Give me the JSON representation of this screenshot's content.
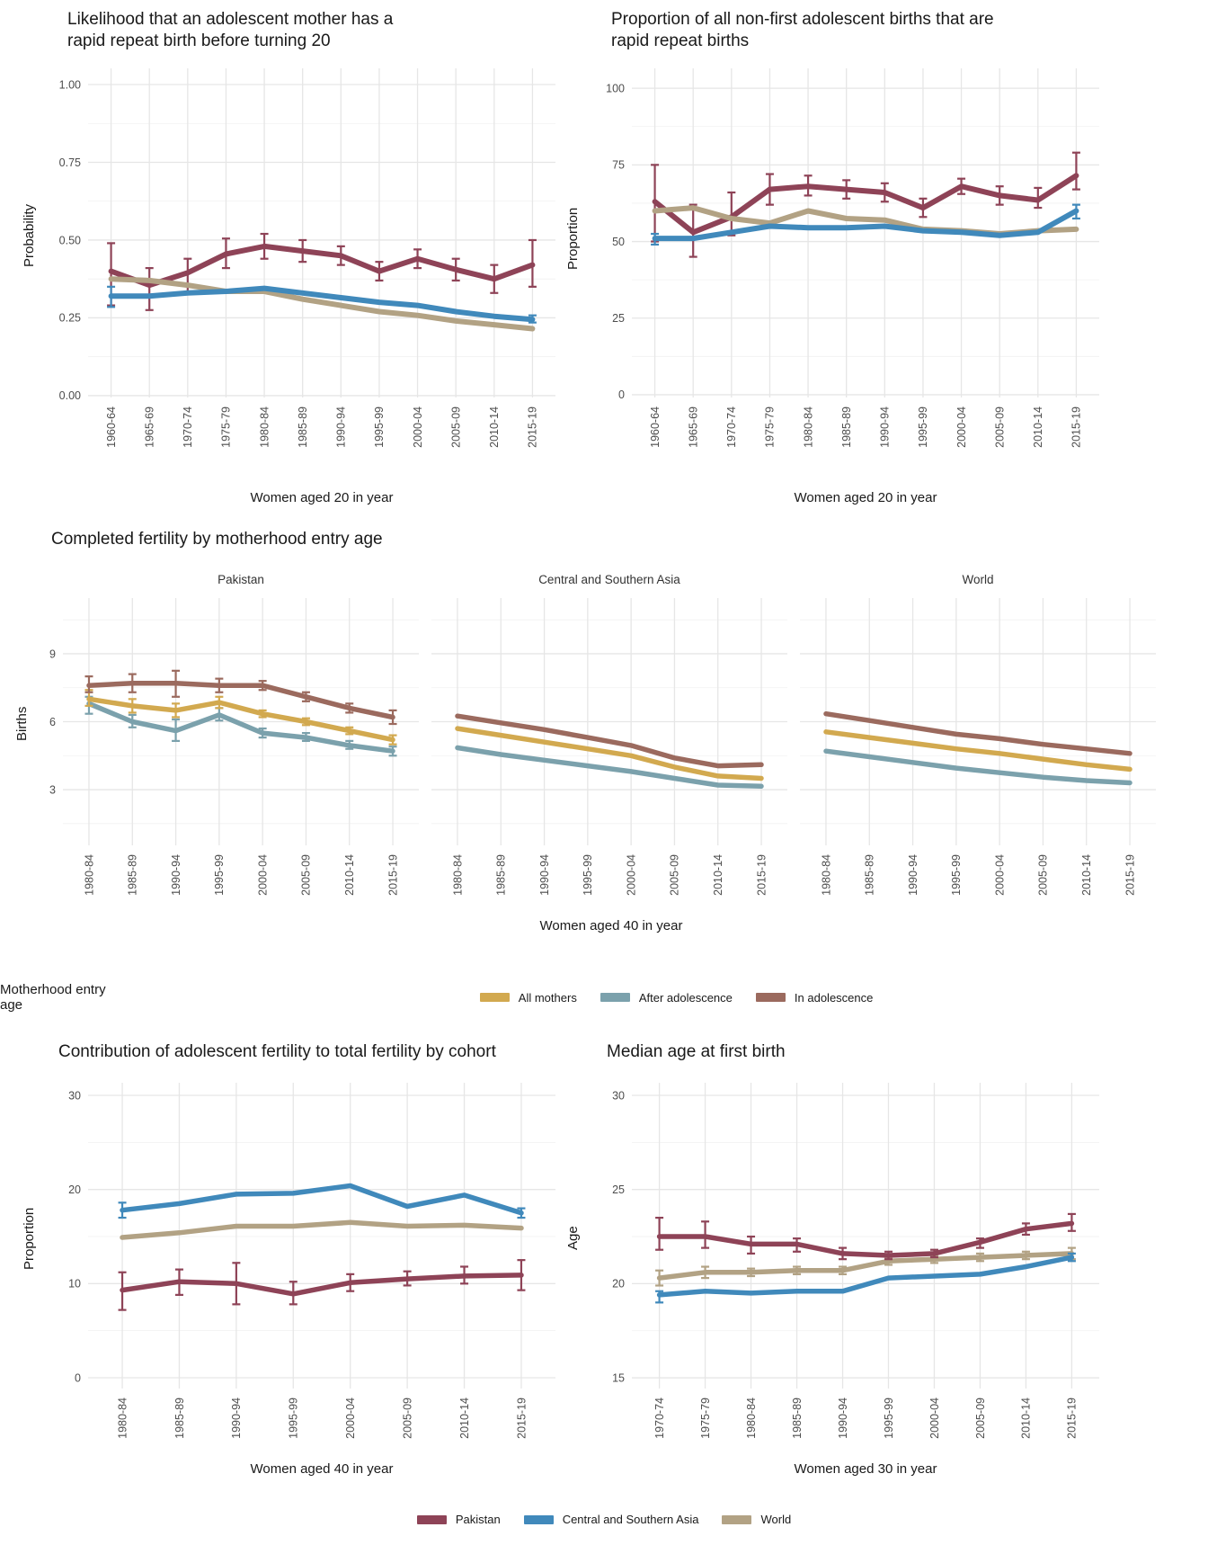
{
  "figure": {
    "background": "#ffffff",
    "grid_major": "#e6e6e6",
    "grid_minor": "#f1f1f1",
    "tick_text_color": "#4d4d4d",
    "title_text_color": "#191919"
  },
  "bottom_legend": {
    "items": [
      {
        "label": "Pakistan",
        "color": "#8e4357"
      },
      {
        "label": "Central and Southern Asia",
        "color": "#4089bb"
      },
      {
        "label": "World",
        "color": "#b2a284"
      }
    ]
  },
  "chart_data": [
    {
      "id": "rrb-likelihood",
      "type": "line",
      "title": "Likelihood that an adolescent mother has a\nrapid repeat birth before turning 20",
      "xlabel": "Women aged 20 in year",
      "ylabel": "Probability",
      "ylim": [
        -0.006,
        1.052
      ],
      "yticks": [
        0,
        0.25,
        0.5,
        0.75,
        1
      ],
      "ytick_labels": [
        "0.00",
        "0.25",
        "0.50",
        "0.75",
        "1.00"
      ],
      "grid": true,
      "legend_position": "none",
      "categories": [
        "1960-64",
        "1965-69",
        "1970-74",
        "1975-79",
        "1980-84",
        "1985-89",
        "1990-94",
        "1995-99",
        "2000-04",
        "2005-09",
        "2010-14",
        "2015-19"
      ],
      "series": [
        {
          "name": "Pakistan",
          "color": "#8e4357",
          "values": [
            0.4,
            0.355,
            0.395,
            0.455,
            0.48,
            0.465,
            0.45,
            0.4,
            0.44,
            0.405,
            0.375,
            0.42
          ],
          "err_lo": [
            0.29,
            0.275,
            0.33,
            0.41,
            0.44,
            0.43,
            0.42,
            0.37,
            0.41,
            0.37,
            0.33,
            0.35
          ],
          "err_hi": [
            0.49,
            0.41,
            0.44,
            0.505,
            0.52,
            0.5,
            0.48,
            0.43,
            0.47,
            0.44,
            0.42,
            0.5
          ]
        },
        {
          "name": "World",
          "color": "#b2a284",
          "values": [
            0.375,
            0.37,
            0.355,
            0.335,
            0.335,
            0.31,
            0.29,
            0.27,
            0.258,
            0.24,
            0.228,
            0.215
          ]
        },
        {
          "name": "Central and Southern Asia",
          "color": "#4089bb",
          "values": [
            0.32,
            0.32,
            0.33,
            0.335,
            0.345,
            0.33,
            0.315,
            0.3,
            0.29,
            0.27,
            0.255,
            0.245
          ],
          "err_lo": [
            0.285,
            null,
            null,
            null,
            null,
            null,
            null,
            null,
            null,
            null,
            null,
            0.235
          ],
          "err_hi": [
            0.35,
            null,
            null,
            null,
            null,
            null,
            null,
            null,
            null,
            null,
            null,
            0.258
          ]
        }
      ]
    },
    {
      "id": "rrb-proportion",
      "type": "line",
      "title": "Proportion of all non-first adolescent births that are\nrapid repeat births",
      "xlabel": "Women aged 20 in year",
      "ylabel": "Proportion",
      "ylim": [
        -0.9,
        106.5
      ],
      "yticks": [
        0,
        25,
        50,
        75,
        100
      ],
      "ytick_labels": [
        "0",
        "25",
        "50",
        "75",
        "100"
      ],
      "grid": true,
      "legend_position": "none",
      "categories": [
        "1960-64",
        "1965-69",
        "1970-74",
        "1975-79",
        "1980-84",
        "1985-89",
        "1990-94",
        "1995-99",
        "2000-04",
        "2005-09",
        "2010-14",
        "2015-19"
      ],
      "series": [
        {
          "name": "Pakistan",
          "color": "#8e4357",
          "values": [
            63,
            53,
            58,
            67,
            68,
            67,
            66,
            61,
            68,
            65,
            63.5,
            71.5
          ],
          "err_lo": [
            50,
            45,
            52,
            62,
            65,
            64,
            63,
            58,
            65.5,
            62,
            61,
            67
          ],
          "err_hi": [
            75,
            62,
            66,
            72,
            71.5,
            70,
            69,
            64,
            70.5,
            68,
            67.5,
            79
          ]
        },
        {
          "name": "World",
          "color": "#b2a284",
          "values": [
            60,
            61,
            57.5,
            56,
            60,
            57.5,
            57,
            54,
            53.5,
            52.5,
            53.5,
            54
          ]
        },
        {
          "name": "Central and Southern Asia",
          "color": "#4089bb",
          "values": [
            51,
            51,
            53,
            55,
            54.5,
            54.5,
            55,
            53.5,
            53,
            52,
            53,
            60
          ],
          "err_lo": [
            49,
            null,
            null,
            null,
            null,
            null,
            null,
            null,
            null,
            null,
            null,
            57.5
          ],
          "err_hi": [
            52.5,
            null,
            null,
            null,
            null,
            null,
            null,
            null,
            null,
            null,
            null,
            62
          ]
        }
      ]
    },
    {
      "id": "completed-fertility",
      "type": "line-faceted",
      "title": "Completed fertility by motherhood entry age",
      "xlabel": "Women aged 40 in year",
      "ylabel": "Births",
      "ylim": [
        0.54,
        11.46
      ],
      "yticks": [
        3,
        6,
        9
      ],
      "ytick_labels": [
        "3",
        "6",
        "9"
      ],
      "grid": true,
      "legend_title": "Motherhood entry age",
      "legend_position": "bottom",
      "legend_items": [
        {
          "label": "All mothers",
          "color": "#d2a94f"
        },
        {
          "label": "After adolescence",
          "color": "#7ba1ac"
        },
        {
          "label": "In adolescence",
          "color": "#9b6a5e"
        }
      ],
      "categories": [
        "1980-84",
        "1985-89",
        "1990-94",
        "1995-99",
        "2000-04",
        "2005-09",
        "2010-14",
        "2015-19"
      ],
      "facets": [
        {
          "label": "Pakistan",
          "series": [
            {
              "name": "After adolescence",
              "color": "#7ba1ac",
              "values": [
                6.8,
                6.0,
                5.6,
                6.3,
                5.5,
                5.3,
                4.95,
                4.7
              ],
              "err_lo": [
                6.35,
                5.75,
                5.15,
                6.05,
                5.3,
                5.15,
                4.8,
                4.5
              ],
              "err_hi": [
                7.1,
                6.3,
                6.1,
                6.6,
                5.7,
                5.5,
                5.15,
                4.9
              ]
            },
            {
              "name": "All mothers",
              "color": "#d2a94f",
              "values": [
                7.0,
                6.7,
                6.5,
                6.85,
                6.35,
                6.0,
                5.6,
                5.2
              ],
              "err_lo": [
                6.7,
                6.4,
                6.2,
                6.6,
                6.2,
                5.85,
                5.45,
                5.0
              ],
              "err_hi": [
                7.4,
                7.0,
                6.8,
                7.1,
                6.5,
                6.15,
                5.75,
                5.4
              ]
            },
            {
              "name": "In adolescence",
              "color": "#9b6a5e",
              "values": [
                7.6,
                7.7,
                7.7,
                7.6,
                7.6,
                7.1,
                6.6,
                6.2
              ],
              "err_lo": [
                7.3,
                7.3,
                7.1,
                7.3,
                7.4,
                6.9,
                6.4,
                5.9
              ],
              "err_hi": [
                8.0,
                8.1,
                8.25,
                7.9,
                7.8,
                7.3,
                6.8,
                6.5
              ]
            }
          ]
        },
        {
          "label": "Central and Southern Asia",
          "series": [
            {
              "name": "After adolescence",
              "color": "#7ba1ac",
              "values": [
                4.85,
                4.55,
                4.3,
                4.05,
                3.8,
                3.5,
                3.2,
                3.15
              ]
            },
            {
              "name": "All mothers",
              "color": "#d2a94f",
              "values": [
                5.7,
                5.4,
                5.1,
                4.8,
                4.5,
                4.0,
                3.6,
                3.5
              ]
            },
            {
              "name": "In adolescence",
              "color": "#9b6a5e",
              "values": [
                6.25,
                5.95,
                5.65,
                5.3,
                4.95,
                4.4,
                4.05,
                4.1
              ]
            }
          ]
        },
        {
          "label": "World",
          "series": [
            {
              "name": "After adolescence",
              "color": "#7ba1ac",
              "values": [
                4.7,
                4.45,
                4.2,
                3.95,
                3.75,
                3.55,
                3.4,
                3.3
              ]
            },
            {
              "name": "All mothers",
              "color": "#d2a94f",
              "values": [
                5.55,
                5.3,
                5.05,
                4.8,
                4.6,
                4.35,
                4.1,
                3.9
              ]
            },
            {
              "name": "In adolescence",
              "color": "#9b6a5e",
              "values": [
                6.35,
                6.05,
                5.75,
                5.45,
                5.25,
                5.0,
                4.8,
                4.6
              ]
            }
          ]
        }
      ]
    },
    {
      "id": "adolescent-contribution",
      "type": "line",
      "title": "Contribution of adolescent fertility to total fertility by cohort",
      "xlabel": "Women aged 40 in year",
      "ylabel": "Proportion",
      "ylim": [
        -1.15,
        31.34
      ],
      "yticks": [
        0,
        10,
        20,
        30
      ],
      "ytick_labels": [
        "0",
        "10",
        "20",
        "30"
      ],
      "grid": true,
      "legend_position": "bottom-shared",
      "categories": [
        "1980-84",
        "1985-89",
        "1990-94",
        "1995-99",
        "2000-04",
        "2005-09",
        "2010-14",
        "2015-19"
      ],
      "series": [
        {
          "name": "Pakistan",
          "color": "#8e4357",
          "values": [
            9.3,
            10.2,
            10.0,
            8.9,
            10.1,
            10.5,
            10.8,
            10.9
          ],
          "err_lo": [
            7.2,
            8.8,
            7.8,
            7.8,
            9.2,
            9.8,
            10.0,
            9.3
          ],
          "err_hi": [
            11.2,
            11.5,
            12.2,
            10.2,
            11.0,
            11.3,
            11.8,
            12.5
          ]
        },
        {
          "name": "World",
          "color": "#b2a284",
          "values": [
            14.9,
            15.4,
            16.1,
            16.1,
            16.5,
            16.1,
            16.2,
            15.9
          ]
        },
        {
          "name": "Central and Southern Asia",
          "color": "#4089bb",
          "values": [
            17.8,
            18.5,
            19.5,
            19.6,
            20.4,
            18.2,
            19.4,
            17.5
          ],
          "err_lo": [
            17.0,
            null,
            null,
            null,
            null,
            null,
            null,
            17.0
          ],
          "err_hi": [
            18.6,
            null,
            null,
            null,
            null,
            null,
            null,
            18.0
          ]
        }
      ]
    },
    {
      "id": "median-age-first-birth",
      "type": "line",
      "title": "Median age at first birth",
      "xlabel": "Women aged 30 in year",
      "ylabel": "Age",
      "ylim": [
        14.43,
        30.67
      ],
      "yticks": [
        15,
        20,
        25,
        30
      ],
      "ytick_labels": [
        "15",
        "20",
        "25",
        "30"
      ],
      "grid": true,
      "legend_position": "bottom-shared",
      "categories": [
        "1970-74",
        "1975-79",
        "1980-84",
        "1985-89",
        "1990-94",
        "1995-99",
        "2000-04",
        "2005-09",
        "2010-14",
        "2015-19"
      ],
      "series": [
        {
          "name": "World",
          "color": "#b2a284",
          "values": [
            20.3,
            20.6,
            20.6,
            20.7,
            20.7,
            21.2,
            21.3,
            21.4,
            21.5,
            21.6
          ],
          "err_lo": [
            19.9,
            20.3,
            20.4,
            20.5,
            20.5,
            21.0,
            21.1,
            21.2,
            21.3,
            21.3
          ],
          "err_hi": [
            20.7,
            20.9,
            20.8,
            20.9,
            20.9,
            21.4,
            21.5,
            21.6,
            21.7,
            21.9
          ]
        },
        {
          "name": "Central and Southern Asia",
          "color": "#4089bb",
          "values": [
            19.4,
            19.6,
            19.5,
            19.6,
            19.6,
            20.3,
            20.4,
            20.5,
            20.9,
            21.4
          ],
          "err_lo": [
            19.0,
            null,
            null,
            null,
            null,
            null,
            null,
            null,
            null,
            21.2
          ],
          "err_hi": [
            19.6,
            null,
            null,
            null,
            null,
            null,
            null,
            null,
            null,
            21.6
          ]
        },
        {
          "name": "Pakistan",
          "color": "#8e4357",
          "values": [
            22.5,
            22.5,
            22.1,
            22.1,
            21.6,
            21.5,
            21.6,
            22.2,
            22.9,
            23.2
          ],
          "err_lo": [
            21.8,
            21.9,
            21.6,
            21.7,
            21.3,
            21.3,
            21.4,
            21.9,
            22.6,
            22.8
          ],
          "err_hi": [
            23.5,
            23.3,
            22.5,
            22.4,
            21.9,
            21.7,
            21.8,
            22.4,
            23.2,
            23.7
          ]
        }
      ]
    }
  ]
}
